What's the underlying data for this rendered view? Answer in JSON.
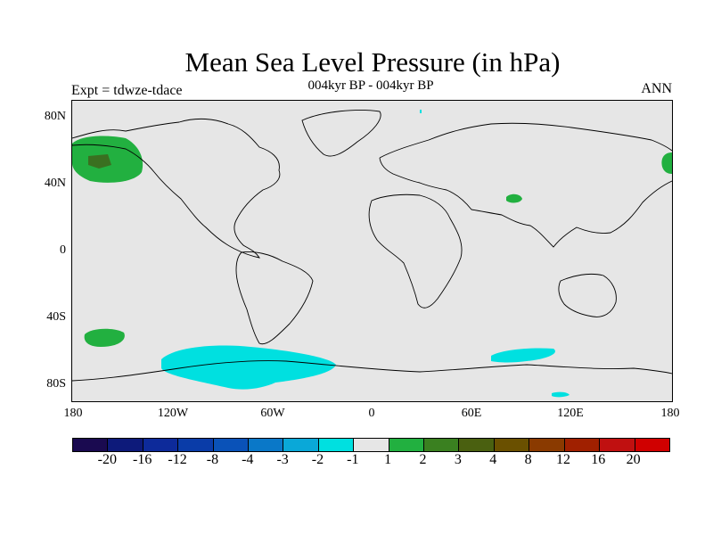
{
  "title": "Mean Sea Level Pressure (in hPa)",
  "experiment": "Expt = tdwze-tdace",
  "subtitle": "004kyr BP - 004kyr BP",
  "season": "ANN",
  "lat_ticks": [
    "80N",
    "40N",
    "0",
    "40S",
    "80S"
  ],
  "lon_ticks": [
    "180",
    "120W",
    "60W",
    "0",
    "60E",
    "120E",
    "180"
  ],
  "colorbar": {
    "colors": [
      "#1a0a50",
      "#0d1a7a",
      "#0d2a9a",
      "#0a3ca8",
      "#0a52b8",
      "#0a78c8",
      "#0aa8d8",
      "#00e0e0",
      "#e6e6e6",
      "#22b040",
      "#3a8020",
      "#4a6010",
      "#6a5000",
      "#8a3a00",
      "#a02000",
      "#c01010",
      "#d00000"
    ],
    "labels": [
      "-20",
      "-16",
      "-12",
      "-8",
      "-4",
      "-3",
      "-2",
      "-1",
      "1",
      "2",
      "3",
      "4",
      "8",
      "12",
      "16",
      "20"
    ]
  },
  "colors": {
    "positive_2": "#22b040",
    "positive_3": "#3a7020",
    "negative_1": "#00e0e0",
    "background": "#e6e6e6"
  }
}
